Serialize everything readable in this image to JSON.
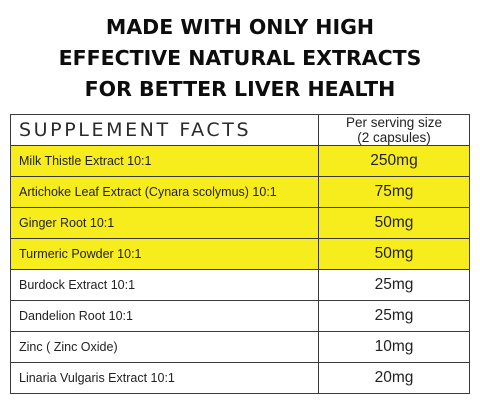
{
  "headline": [
    "MADE WITH ONLY HIGH",
    "EFFECTIVE NATURAL EXTRACTS",
    "FOR BETTER LIVER HEALTH"
  ],
  "table": {
    "title": "SUPPLEMENT FACTS",
    "serving_header": [
      "Per serving size",
      "(2 capsules)"
    ],
    "highlight_color": "#f7ec1c",
    "rows": [
      {
        "name": "Milk Thistle Extract 10:1",
        "amount": "250mg",
        "highlighted": true
      },
      {
        "name": "Artichoke Leaf Extract (Cynara scolymus) 10:1",
        "amount": "75mg",
        "highlighted": true
      },
      {
        "name": "Ginger Root 10:1",
        "amount": "50mg",
        "highlighted": true
      },
      {
        "name": "Turmeric Powder 10:1",
        "amount": "50mg",
        "highlighted": true
      },
      {
        "name": "Burdock Extract 10:1",
        "amount": "25mg",
        "highlighted": false
      },
      {
        "name": "Dandelion Root 10:1",
        "amount": "25mg",
        "highlighted": false
      },
      {
        "name": "Zinc ( Zinc Oxide)",
        "amount": "10mg",
        "highlighted": false
      },
      {
        "name": "Linaria Vulgaris Extract 10:1",
        "amount": "20mg",
        "highlighted": false
      }
    ]
  }
}
